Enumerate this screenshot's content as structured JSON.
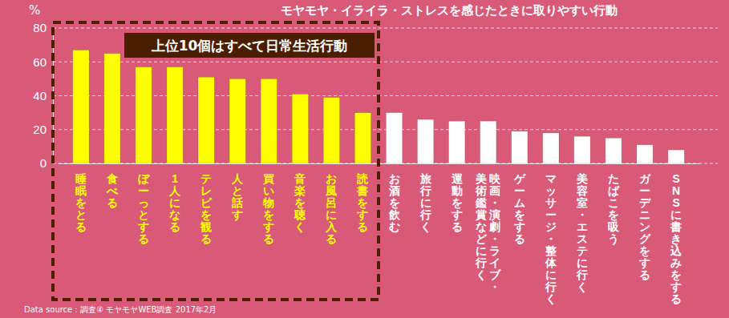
{
  "chart_data": {
    "type": "bar",
    "title": "モヤモヤ・イライラ・ストレスを感じたときに取りやすい行動",
    "y_label": "%",
    "annotations": [
      "上位10個はすべて日常生活行動",
      "Data source：調査④ モヤモヤWEB調査 2017年2月"
    ],
    "categories": [
      "睡眠をとる",
      "食べる",
      "ぼーっとする",
      "1人になる",
      "テレビを観る",
      "人と話す",
      "買い物をする",
      "音楽を聴く",
      "お風呂に入る",
      "読書をする",
      "お酒を飲む",
      "旅行に行く",
      "運動をする",
      "映画・演劇・ライブ・美術鑑賞などに行く",
      "ゲームをする",
      "マッサージ・整体に行く",
      "美容室・エステに行く",
      "たばこを吸う",
      "ガーデニングをする",
      "SNSに書き込みをする"
    ],
    "values": [
      67,
      65,
      57,
      57,
      51,
      50,
      50,
      41,
      39,
      30,
      30,
      26,
      25,
      25,
      19,
      18,
      16,
      15,
      11,
      8
    ],
    "colors": [
      "#ffff00",
      "#ffff00",
      "#ffff00",
      "#ffff00",
      "#ffff00",
      "#ffff00",
      "#ffff00",
      "#ffff00",
      "#ffff00",
      "#ffff00",
      "#ffffff",
      "#ffffff",
      "#ffffff",
      "#ffffff",
      "#ffffff",
      "#ffffff",
      "#ffffff",
      "#ffffff",
      "#ffffff",
      "#ffffff"
    ],
    "ylim": [
      0,
      80
    ],
    "yticks": [
      0,
      20,
      40,
      60,
      80
    ],
    "grid": true
  }
}
